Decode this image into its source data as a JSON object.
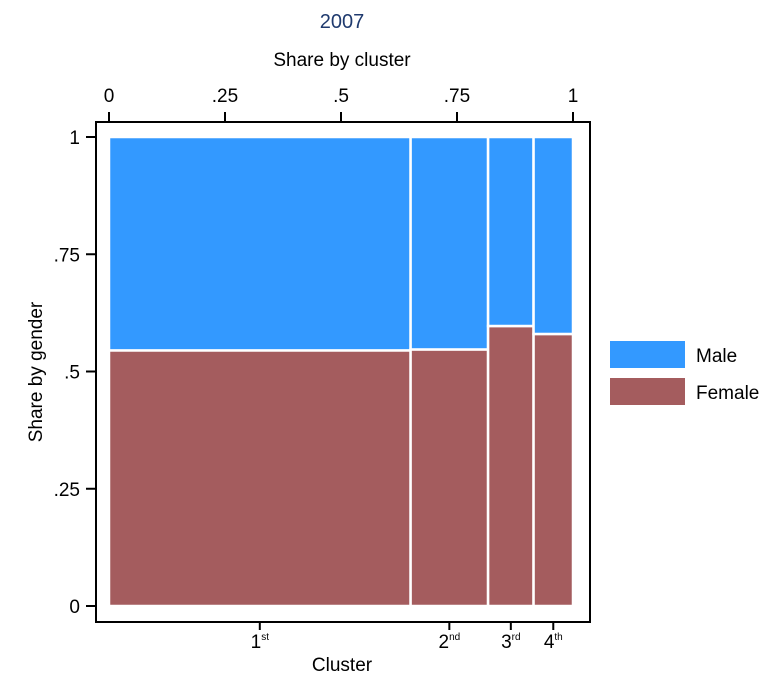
{
  "chart_data": {
    "type": "mosaic",
    "title": "2007",
    "top_axis_label": "Share by cluster",
    "xlabel": "Cluster",
    "ylabel": "Share by gender",
    "xlim": [
      0,
      1
    ],
    "ylim": [
      0,
      1
    ],
    "top_ticks": [
      {
        "value": 0,
        "label": "0"
      },
      {
        "value": 0.25,
        "label": ".25"
      },
      {
        "value": 0.5,
        "label": ".5"
      },
      {
        "value": 0.75,
        "label": ".75"
      },
      {
        "value": 1,
        "label": "1"
      }
    ],
    "y_ticks": [
      {
        "value": 0,
        "label": "0"
      },
      {
        "value": 0.25,
        "label": ".25"
      },
      {
        "value": 0.5,
        "label": ".5"
      },
      {
        "value": 0.75,
        "label": ".75"
      },
      {
        "value": 1,
        "label": "1"
      }
    ],
    "categories": [
      {
        "base": "1",
        "sup": "st",
        "width": 0.65
      },
      {
        "base": "2",
        "sup": "nd",
        "width": 0.167
      },
      {
        "base": "3",
        "sup": "rd",
        "width": 0.098
      },
      {
        "base": "4",
        "sup": "th",
        "width": 0.085
      }
    ],
    "series": [
      {
        "name": "Female",
        "color": "#a45c5e",
        "values": [
          0.545,
          0.547,
          0.597,
          0.58
        ]
      },
      {
        "name": "Male",
        "color": "#3399ff",
        "values": [
          0.455,
          0.453,
          0.403,
          0.42
        ]
      }
    ],
    "legend": {
      "position": "right",
      "entries": [
        {
          "label": "Male",
          "color": "#3399ff"
        },
        {
          "label": "Female",
          "color": "#a45c5e"
        }
      ]
    },
    "grid": false
  }
}
